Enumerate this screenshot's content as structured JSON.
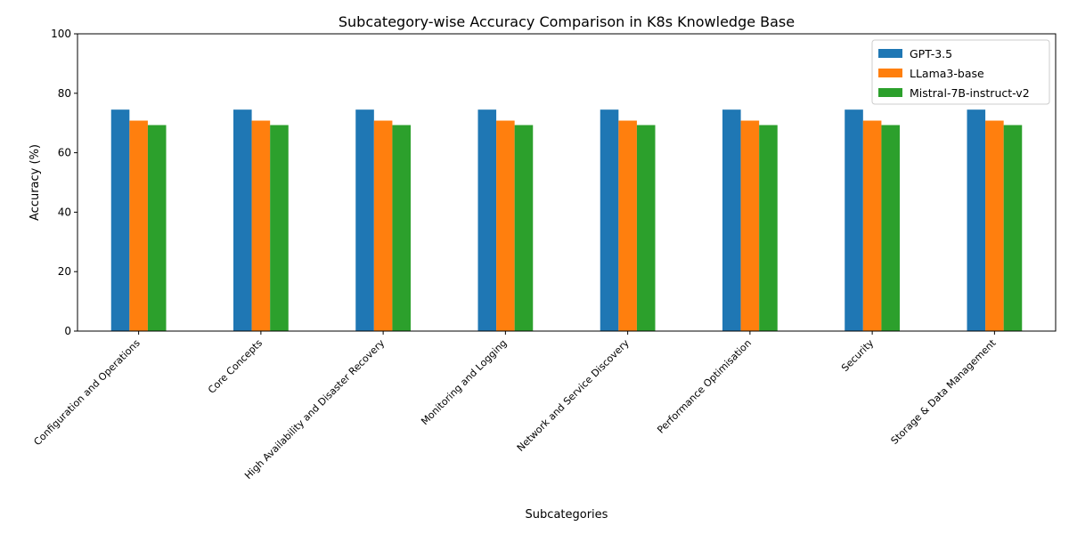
{
  "chart_data": {
    "type": "bar",
    "title": "Subcategory-wise Accuracy Comparison in K8s Knowledge Base",
    "xlabel": "Subcategories",
    "ylabel": "Accuracy (%)",
    "ylim": [
      0,
      100
    ],
    "yticks": [
      0,
      20,
      40,
      60,
      80,
      100
    ],
    "grid": false,
    "legend_position": "top-right",
    "categories": [
      "Configuration and Operations",
      "Core Concepts",
      "High Availability and Disaster Recovery",
      "Monitoring and Logging",
      "Network and Service Discovery",
      "Performance Optimisation",
      "Security",
      "Storage & Data Management"
    ],
    "series": [
      {
        "name": "GPT-3.5",
        "color": "#1f77b4",
        "values": [
          74.5,
          74.5,
          74.5,
          74.5,
          74.5,
          74.5,
          74.5,
          74.5
        ]
      },
      {
        "name": "LLama3-base",
        "color": "#ff7f0e",
        "values": [
          70.8,
          70.8,
          70.8,
          70.8,
          70.8,
          70.8,
          70.8,
          70.8
        ]
      },
      {
        "name": "Mistral-7B-instruct-v2",
        "color": "#2ca02c",
        "values": [
          69.3,
          69.3,
          69.3,
          69.3,
          69.3,
          69.3,
          69.3,
          69.3
        ]
      }
    ]
  }
}
